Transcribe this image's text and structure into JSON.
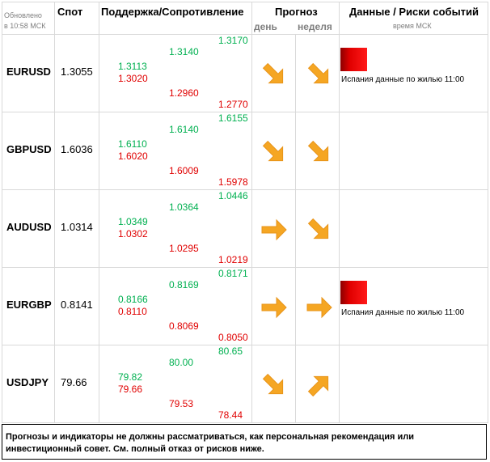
{
  "header": {
    "updated_line1": "Обновлено",
    "updated_line2": "в 10:58 МСК",
    "spot": "Спот",
    "support_resistance": "Поддержка/Сопротивление",
    "forecast": "Прогноз",
    "forecast_day": "день",
    "forecast_week": "неделя",
    "events": "Данные / Риски событий",
    "events_time": "время МСК"
  },
  "rows": [
    {
      "pair": "EURUSD",
      "spot": "1.3055",
      "s1_top": "1.3113",
      "s1_bottom": "1.3020",
      "s2_top": "1.3140",
      "s2_bottom": "1.2960",
      "s3_top": "1.3170",
      "s3_bottom": "1.2770",
      "day_trend": "down",
      "week_trend": "down",
      "event": "Испания данные по жилью 11:00",
      "event_flag": true
    },
    {
      "pair": "GBPUSD",
      "spot": "1.6036",
      "s1_top": "1.6110",
      "s1_bottom": "1.6020",
      "s2_top": "1.6140",
      "s2_bottom": "1.6009",
      "s3_top": "1.6155",
      "s3_bottom": "1.5978",
      "day_trend": "down",
      "week_trend": "down",
      "event": "",
      "event_flag": false
    },
    {
      "pair": "AUDUSD",
      "spot": "1.0314",
      "s1_top": "1.0349",
      "s1_bottom": "1.0302",
      "s2_top": "1.0364",
      "s2_bottom": "1.0295",
      "s3_top": "1.0446",
      "s3_bottom": "1.0219",
      "day_trend": "right",
      "week_trend": "down",
      "event": "",
      "event_flag": false
    },
    {
      "pair": "EURGBP",
      "spot": "0.8141",
      "s1_top": "0.8166",
      "s1_bottom": "0.8110",
      "s2_top": "0.8169",
      "s2_bottom": "0.8069",
      "s3_top": "0.8171",
      "s3_bottom": "0.8050",
      "day_trend": "right",
      "week_trend": "right",
      "event": "Испания данные по жилью 11:00",
      "event_flag": true
    },
    {
      "pair": "USDJPY",
      "spot": "79.66",
      "s1_top": "79.82",
      "s1_bottom": "79.66",
      "s2_top": "80.00",
      "s2_bottom": "79.53",
      "s3_top": "80.65",
      "s3_bottom": "78.44",
      "day_trend": "down",
      "week_trend": "up",
      "event": "",
      "event_flag": false
    }
  ],
  "disclaimer": "Прогнозы и индикаторы не должны рассматриваться, как персональная рекомендация или инвестиционный совет. См. полный отказ от рисков ниже.",
  "colors": {
    "support_green": "#00b050",
    "resistance_red": "#e00000",
    "arrow_orange": "#f5a623",
    "flag_red": "#e00000"
  }
}
